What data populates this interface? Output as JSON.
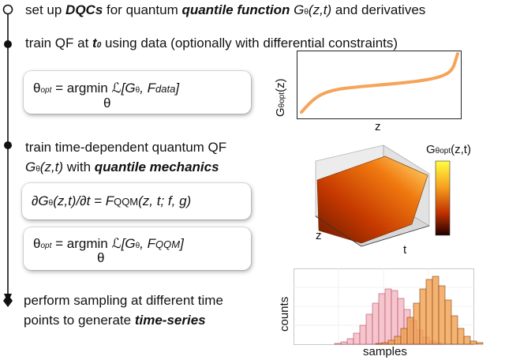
{
  "steps": {
    "s1": {
      "pre": "set up ",
      "dqcs": "DQCs",
      "mid": " for quantum ",
      "qfunc": "quantile function",
      "g": "G",
      "theta": "θ",
      "args": "(z,t)",
      "post": " and derivatives"
    },
    "s2": {
      "pre": "train QF at ",
      "t": "t",
      "tsub": "0",
      "post": " using data (optionally with differential constraints)"
    },
    "s3": {
      "line1": "train time-dependent quantum QF",
      "g": "G",
      "theta": "θ",
      "args": "(z,t)",
      "with": " with ",
      "qm": "quantile mechanics"
    },
    "s4": {
      "line1": "perform sampling at different time",
      "line2_pre": "points to generate ",
      "ts": "time-series"
    }
  },
  "eq1": {
    "theta": "θ",
    "opt": "opt",
    "eqsign": " = argmin ",
    "L": "ℒ",
    "bracket_open": "[G",
    "gtheta": "θ",
    "comma": ", ",
    "F": "F",
    "fsub": "data",
    "close": "]",
    "under": "θ"
  },
  "eq2": {
    "lhs": "∂G",
    "theta": "θ",
    "lhs2": "(z,t)/∂t = ",
    "F": "F",
    "fsub": "QQM",
    "rhs": "(z, t; f, g)"
  },
  "eq3": {
    "theta": "θ",
    "opt": "opt",
    "eqsign": " = argmin ",
    "L": "ℒ",
    "bracket_open": "[G",
    "gtheta": "θ",
    "comma": ", ",
    "F": "F",
    "fsub": "QQM",
    "close": "]",
    "under": "θ"
  },
  "plot1": {
    "ylabel_g": "G",
    "ylabel_sub": "θopt",
    "ylabel_args": "(z)",
    "xlabel": "z",
    "color": "#f5a45a"
  },
  "plot2": {
    "colorbar_g": "G",
    "colorbar_sub": "θopt",
    "colorbar_args": "(z,t)",
    "zlabel": "z",
    "tlabel": "t"
  },
  "plot3": {
    "ylabel": "counts",
    "xlabel": "samples",
    "color_a": "#f4b6c2",
    "color_b": "#f0a050"
  },
  "colors": {
    "timeline": "#111111",
    "surface_high": "#ffe47a",
    "surface_low": "#6a1a00"
  }
}
